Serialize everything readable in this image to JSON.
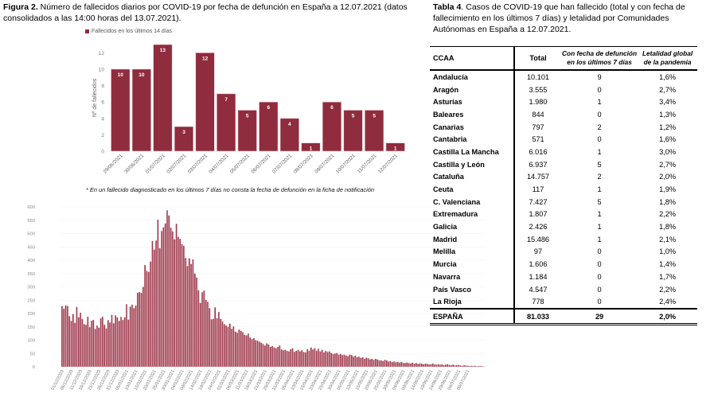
{
  "figure": {
    "label": "Figura 2.",
    "caption": " Número de fallecidos diarios por COVID-19 por fecha de defunción en España a 12.07.2021 (datos consolidados a las 14:00 horas del 13.07.2021).",
    "footnote": "* En un fallecido diagnosticado en los últimos 7 días no consta la fecha de defunción en la ficha de notificación"
  },
  "table": {
    "label": "Tabla 4",
    "caption": ". Casos de COVID-19 que han fallecido (total y con fecha de fallecimiento en los últimos 7 días) y letalidad por Comunidades Autónomas en España a 12.07.2021.",
    "headers": [
      "CCAA",
      "Total",
      "Con fecha de defunción en los últimos 7 días",
      "Letalidad global de la pandemia"
    ],
    "rows": [
      {
        "ccaa": "Andalucía",
        "total": "10.101",
        "last7": "9",
        "letalidad": "1,6%"
      },
      {
        "ccaa": "Aragón",
        "total": "3.555",
        "last7": "0",
        "letalidad": "2,7%"
      },
      {
        "ccaa": "Asturias",
        "total": "1.980",
        "last7": "1",
        "letalidad": "3,4%"
      },
      {
        "ccaa": "Baleares",
        "total": "844",
        "last7": "0",
        "letalidad": "1,3%"
      },
      {
        "ccaa": "Canarias",
        "total": "797",
        "last7": "2",
        "letalidad": "1,2%"
      },
      {
        "ccaa": "Cantabria",
        "total": "571",
        "last7": "0",
        "letalidad": "1,6%"
      },
      {
        "ccaa": "Castilla La Mancha",
        "total": "6.016",
        "last7": "1",
        "letalidad": "3,0%"
      },
      {
        "ccaa": "Castilla y León",
        "total": "6.937",
        "last7": "5",
        "letalidad": "2,7%"
      },
      {
        "ccaa": "Cataluña",
        "total": "14.757",
        "last7": "2",
        "letalidad": "2,0%"
      },
      {
        "ccaa": "Ceuta",
        "total": "117",
        "last7": "1",
        "letalidad": "1,9%"
      },
      {
        "ccaa": "C. Valenciana",
        "total": "7.427",
        "last7": "5",
        "letalidad": "1,8%"
      },
      {
        "ccaa": "Extremadura",
        "total": "1.807",
        "last7": "1",
        "letalidad": "2,2%"
      },
      {
        "ccaa": "Galicia",
        "total": "2.426",
        "last7": "1",
        "letalidad": "1,8%"
      },
      {
        "ccaa": "Madrid",
        "total": "15.486",
        "last7": "1",
        "letalidad": "2,1%"
      },
      {
        "ccaa": "Melilla",
        "total": "97",
        "last7": "0",
        "letalidad": "1,0%"
      },
      {
        "ccaa": "Murcia",
        "total": "1.606",
        "last7": "0",
        "letalidad": "1,4%"
      },
      {
        "ccaa": "Navarra",
        "total": "1.184",
        "last7": "0",
        "letalidad": "1,7%"
      },
      {
        "ccaa": "País Vasco",
        "total": "4.547",
        "last7": "0",
        "letalidad": "2,2%"
      },
      {
        "ccaa": "La Rioja",
        "total": "778",
        "last7": "0",
        "letalidad": "2,4%"
      }
    ],
    "total": {
      "ccaa": "ESPAÑA",
      "total": "81.033",
      "last7": "29",
      "letalidad": "2,0%"
    }
  },
  "chart_data": [
    {
      "type": "bar",
      "title": "",
      "legend": [
        "Fallecidos en los últimos 14 días"
      ],
      "legend_position": "top-left",
      "ylabel": "Nº de fallecidos",
      "xlabel": "",
      "ylim": [
        0,
        13
      ],
      "yticks": [
        0,
        2,
        4,
        6,
        8,
        10,
        12
      ],
      "color": "#8f2c3e",
      "categories": [
        "29/06/2021",
        "30/06/2021",
        "01/07/2021",
        "02/07/2021",
        "03/07/2021",
        "04/07/2021",
        "05/07/2021",
        "06/07/2021",
        "07/07/2021",
        "08/07/2021",
        "09/07/2021",
        "10/07/2021",
        "11/07/2021",
        "12/07/2021"
      ],
      "values": [
        10,
        10,
        13,
        3,
        12,
        7,
        5,
        6,
        4,
        1,
        6,
        5,
        5,
        1
      ]
    },
    {
      "type": "bar",
      "title": "",
      "xlabel": "",
      "ylabel": "",
      "ylim": [
        0,
        600
      ],
      "yticks": [
        0,
        50,
        100,
        150,
        200,
        250,
        300,
        350,
        400,
        450,
        500,
        550,
        600
      ],
      "grid": true,
      "color": "#9e3a4c",
      "start_date": "01/12/2020",
      "xtick_labels": [
        "01/12/2020",
        "06/12/2020",
        "11/12/2020",
        "16/12/2020",
        "21/12/2020",
        "26/12/2020",
        "31/12/2020",
        "05/01/2021",
        "10/01/2021",
        "15/01/2021",
        "20/01/2021",
        "25/01/2021",
        "30/01/2021",
        "04/02/2021",
        "09/02/2021",
        "14/02/2021",
        "19/02/2021",
        "24/02/2021",
        "01/03/2021",
        "06/03/2021",
        "11/03/2021",
        "16/03/2021",
        "21/03/2021",
        "26/03/2021",
        "31/03/2021",
        "05/04/2021",
        "10/04/2021",
        "15/04/2021",
        "20/04/2021",
        "25/04/2021",
        "30/04/2021",
        "05/05/2021",
        "10/05/2021",
        "15/05/2021",
        "20/05/2021",
        "25/05/2021",
        "30/05/2021",
        "04/06/2021",
        "09/06/2021",
        "14/06/2021",
        "19/06/2021",
        "24/06/2021",
        "29/06/2021",
        "04/07/2021",
        "09/07/2021"
      ],
      "values": [
        228,
        218,
        231,
        228,
        190,
        172,
        198,
        165,
        225,
        186,
        203,
        180,
        160,
        158,
        188,
        149,
        173,
        176,
        142,
        155,
        147,
        182,
        188,
        158,
        144,
        175,
        166,
        195,
        163,
        193,
        186,
        172,
        187,
        176,
        186,
        235,
        177,
        226,
        233,
        220,
        230,
        278,
        280,
        277,
        300,
        382,
        360,
        356,
        395,
        472,
        440,
        474,
        552,
        445,
        510,
        523,
        538,
        587,
        568,
        522,
        508,
        478,
        537,
        488,
        480,
        460,
        454,
        408,
        378,
        407,
        386,
        403,
        350,
        335,
        287,
        240,
        280,
        286,
        251,
        244,
        220,
        178,
        180,
        223,
        182,
        206,
        180,
        170,
        160,
        155,
        150,
        162,
        143,
        152,
        132,
        128,
        140,
        135,
        130,
        120,
        118,
        125,
        110,
        104,
        108,
        100,
        98,
        95,
        90,
        86,
        80,
        88,
        84,
        75,
        78,
        73,
        70,
        75,
        80,
        65,
        62,
        64,
        60,
        58,
        66,
        70,
        56,
        60,
        64,
        58,
        62,
        56,
        54,
        66,
        60,
        72,
        65,
        70,
        60,
        68,
        58,
        64,
        54,
        60,
        56,
        58,
        52,
        48,
        50,
        52,
        46,
        48,
        44,
        46,
        42,
        40,
        46,
        44,
        38,
        42,
        36,
        38,
        34,
        36,
        30,
        34,
        32,
        28,
        30,
        26,
        30,
        28,
        24,
        24,
        22,
        26,
        24,
        20,
        22,
        18,
        20,
        17,
        19,
        16,
        18,
        15,
        14,
        16,
        14,
        13,
        15,
        12,
        14,
        11,
        13,
        12,
        10,
        12,
        11,
        9,
        10,
        12,
        9,
        8,
        10,
        8,
        9,
        7,
        8,
        10,
        7,
        6,
        8,
        5,
        6,
        7,
        5,
        4,
        6,
        5,
        4,
        3,
        4,
        3,
        4,
        2,
        3,
        3,
        2,
        1
      ]
    }
  ]
}
